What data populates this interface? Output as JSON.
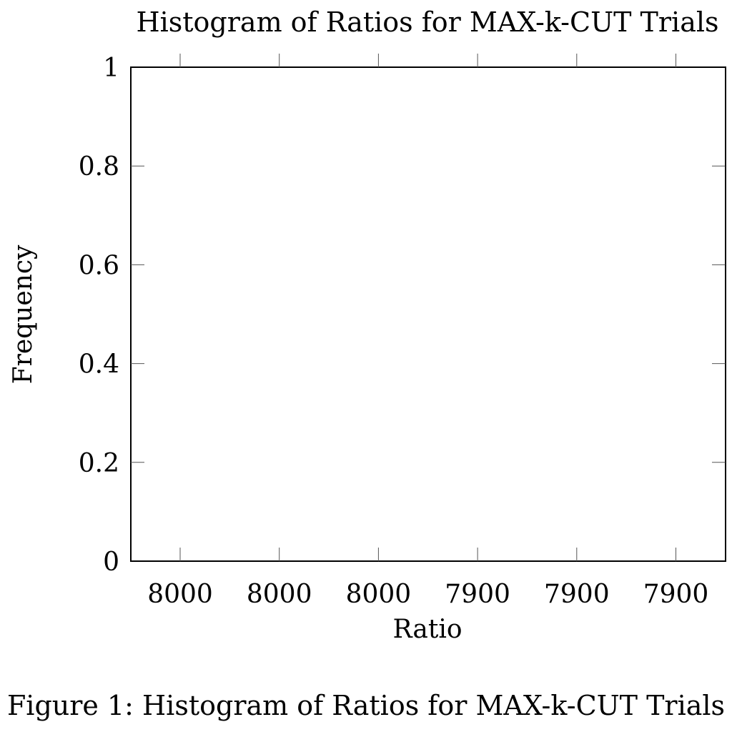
{
  "chart_data": {
    "type": "bar",
    "title": "Histogram of Ratios for MAX-k-CUT Trials",
    "xlabel": "Ratio",
    "ylabel": "Frequency",
    "x_tick_labels": [
      "8000",
      "8000",
      "8000",
      "7900",
      "7900",
      "7900"
    ],
    "y_tick_labels": [
      "0",
      "0.2",
      "0.4",
      "0.6",
      "0.8",
      "1"
    ],
    "ylim": [
      0,
      1
    ],
    "series": [],
    "grid": false
  },
  "caption": "Figure 1: Histogram of Ratios for MAX-k-CUT Trials"
}
